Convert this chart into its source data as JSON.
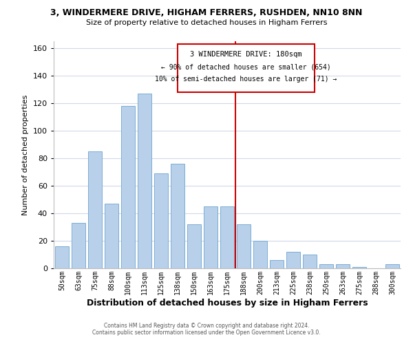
{
  "title": "3, WINDERMERE DRIVE, HIGHAM FERRERS, RUSHDEN, NN10 8NN",
  "subtitle": "Size of property relative to detached houses in Higham Ferrers",
  "xlabel": "Distribution of detached houses by size in Higham Ferrers",
  "ylabel": "Number of detached properties",
  "bar_labels": [
    "50sqm",
    "63sqm",
    "75sqm",
    "88sqm",
    "100sqm",
    "113sqm",
    "125sqm",
    "138sqm",
    "150sqm",
    "163sqm",
    "175sqm",
    "188sqm",
    "200sqm",
    "213sqm",
    "225sqm",
    "238sqm",
    "250sqm",
    "263sqm",
    "275sqm",
    "288sqm",
    "300sqm"
  ],
  "bar_heights": [
    16,
    33,
    85,
    47,
    118,
    127,
    69,
    76,
    32,
    45,
    45,
    32,
    20,
    6,
    12,
    10,
    3,
    3,
    1,
    0,
    3
  ],
  "bar_color": "#b8d0ea",
  "bar_edge_color": "#7aaed4",
  "vline_color": "#cc0000",
  "ylim": [
    0,
    165
  ],
  "yticks": [
    0,
    20,
    40,
    60,
    80,
    100,
    120,
    140,
    160
  ],
  "annotation_title": "3 WINDERMERE DRIVE: 180sqm",
  "annotation_line1": "← 90% of detached houses are smaller (654)",
  "annotation_line2": "10% of semi-detached houses are larger (71) →",
  "footer1": "Contains HM Land Registry data © Crown copyright and database right 2024.",
  "footer2": "Contains public sector information licensed under the Open Government Licence v3.0.",
  "background_color": "#ffffff",
  "grid_color": "#d0d8e8"
}
